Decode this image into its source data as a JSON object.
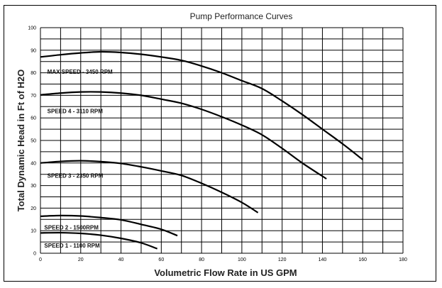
{
  "chart_data": {
    "type": "line",
    "title": "Pump Performance Curves",
    "xlabel": "Volumetric Flow Rate in US GPM",
    "ylabel": "Total Dynamic Head in Ft of H2O",
    "xlim": [
      0,
      180
    ],
    "ylim": [
      0,
      100
    ],
    "xticks": [
      0,
      20,
      40,
      60,
      80,
      100,
      120,
      140,
      160,
      180
    ],
    "yticks": [
      0,
      10,
      20,
      30,
      40,
      50,
      60,
      70,
      80,
      90,
      100
    ],
    "grid": true,
    "grid_x_step": 10,
    "grid_y_step": 5,
    "line_color": "#000000",
    "series": [
      {
        "name": "MAX SPEED - 3450 RPM",
        "x": [
          0,
          10,
          20,
          30,
          40,
          50,
          60,
          70,
          80,
          90,
          100,
          110,
          120,
          130,
          140,
          150,
          160
        ],
        "y": [
          87,
          88,
          88.8,
          89.3,
          89,
          88.2,
          87,
          85.5,
          83,
          80,
          76.5,
          73,
          67.5,
          61.5,
          55,
          48.5,
          41.5
        ]
      },
      {
        "name": "SPEED 4 - 3110 RPM",
        "x": [
          0,
          10,
          20,
          30,
          40,
          50,
          60,
          70,
          80,
          90,
          100,
          110,
          120,
          130,
          142
        ],
        "y": [
          70.2,
          71,
          71.5,
          71.5,
          71,
          70,
          68.3,
          66.5,
          63.8,
          60.5,
          56.8,
          52.5,
          46.5,
          40,
          33
        ]
      },
      {
        "name": "SPEED 3 - 2350 RPM",
        "x": [
          0,
          10,
          20,
          30,
          40,
          50,
          60,
          70,
          80,
          90,
          100,
          108
        ],
        "y": [
          40,
          40.7,
          41,
          40.6,
          39.8,
          38.3,
          36.5,
          34.5,
          31,
          27,
          22.5,
          18
        ]
      },
      {
        "name": "SPEED 2 - 1500RPM",
        "x": [
          0,
          10,
          20,
          30,
          40,
          50,
          60,
          68
        ],
        "y": [
          16.4,
          16.7,
          16.5,
          15.8,
          14.8,
          12.8,
          10.6,
          7.8
        ]
      },
      {
        "name": "SPEED 1 - 1100 RPM",
        "x": [
          0,
          10,
          20,
          30,
          40,
          50,
          58
        ],
        "y": [
          9,
          9.1,
          8.8,
          8,
          6.6,
          4.6,
          2
        ]
      }
    ]
  }
}
